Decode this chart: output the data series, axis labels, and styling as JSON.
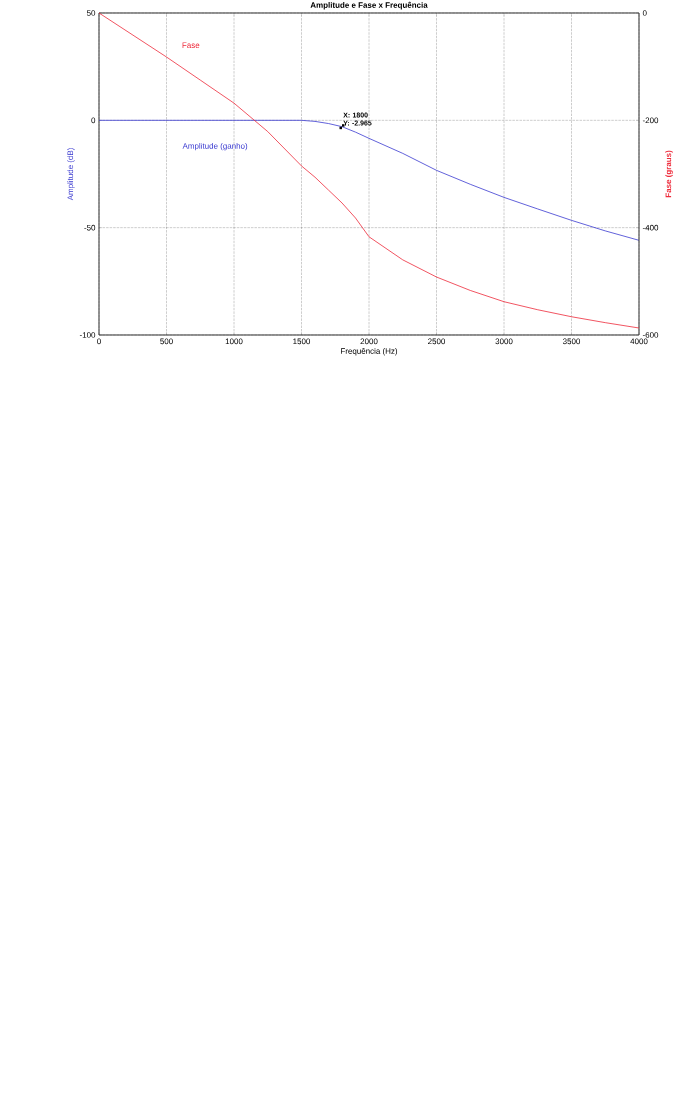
{
  "chart_data": {
    "type": "line",
    "title": "Amplitude e Fase x Frequência",
    "xlabel": "Frequência (Hz)",
    "ylabel": "Amplitude (dB)",
    "y2label": "Fase (graus)",
    "x": [
      0,
      250,
      500,
      750,
      1000,
      1250,
      1500,
      1600,
      1700,
      1800,
      1900,
      2000,
      2250,
      2500,
      2750,
      3000,
      3250,
      3500,
      3750,
      4000
    ],
    "series": [
      {
        "name": "Amplitude (ganho)",
        "color": "#3a3ad0",
        "values": [
          0,
          0,
          0,
          0,
          0,
          0,
          0,
          -0.5,
          -1.5,
          -2.965,
          -5.5,
          -8.4,
          -15.4,
          -23.3,
          -29.8,
          -35.9,
          -41.3,
          -46.6,
          -51.5,
          -55.9
        ]
      },
      {
        "name": "Fase",
        "color": "#ee2a3a",
        "axis": "y2",
        "values": [
          0,
          -41,
          -82,
          -125,
          -168,
          -221,
          -285,
          -306,
          -330,
          -354,
          -382,
          -417,
          -460,
          -492,
          -517,
          -538,
          -553,
          -566,
          -577,
          -587
        ]
      }
    ],
    "xlim": [
      0,
      4000
    ],
    "ylim": [
      -100,
      50
    ],
    "y2lim": [
      -600,
      0
    ],
    "xticks": [
      0,
      500,
      1000,
      1500,
      2000,
      2500,
      3000,
      3500,
      4000
    ],
    "yticks": [
      -100,
      -50,
      0,
      50
    ],
    "y2ticks": [
      -600,
      -400,
      -200,
      0
    ],
    "grid": true,
    "line_style": "solid",
    "annotations": [
      {
        "text": "X: 1800 Y: -2.965",
        "x": 1800,
        "y": -2.965
      }
    ]
  }
}
